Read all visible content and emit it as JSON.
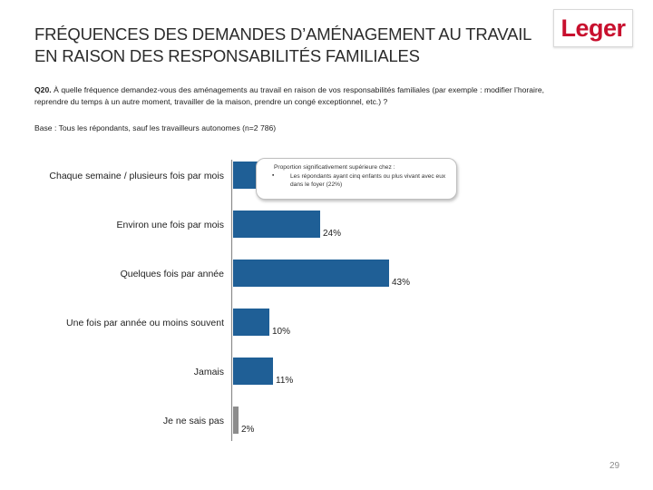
{
  "header": {
    "title": "FRÉQUENCES DES DEMANDES D’AMÉNAGEMENT AU TRAVAIL EN RAISON DES RESPONSABILITÉS FAMILIALES",
    "logo_text": "Leger",
    "brand_color": "#c8102e"
  },
  "question": {
    "label": "Q20.",
    "text": " À quelle fréquence demandez-vous des aménagements au travail en raison de vos responsabilités familiales (par exemple : modifier l’horaire, reprendre du temps à un autre moment, travailler de la maison, prendre un congé exceptionnel, etc.) ?",
    "base": "Base : Tous les répondants, sauf les travailleurs autonomes (n=2 786)"
  },
  "callout": {
    "heading": "Proportion significativement supérieure chez :",
    "bullet": "▪",
    "item": "Les répondants ayant cinq enfants ou plus vivant avec eux dans le foyer (22%)"
  },
  "chart_data": {
    "type": "bar",
    "orientation": "horizontal",
    "categories": [
      "Chaque semaine / plusieurs fois par mois",
      "Environ une fois par mois",
      "Quelques fois par année",
      "Une fois par année ou moins souvent",
      "Jamais",
      "Je ne sais pas"
    ],
    "values": [
      10,
      24,
      43,
      10,
      11,
      2
    ],
    "labels": [
      "",
      "24%",
      "43%",
      "10%",
      "11%",
      "2%"
    ],
    "colors": [
      "#1f5f96",
      "#1f5f96",
      "#1f5f96",
      "#1f5f96",
      "#1f5f96",
      "#8c8c8c"
    ],
    "xlim": [
      0,
      100
    ]
  },
  "page_number": "29"
}
